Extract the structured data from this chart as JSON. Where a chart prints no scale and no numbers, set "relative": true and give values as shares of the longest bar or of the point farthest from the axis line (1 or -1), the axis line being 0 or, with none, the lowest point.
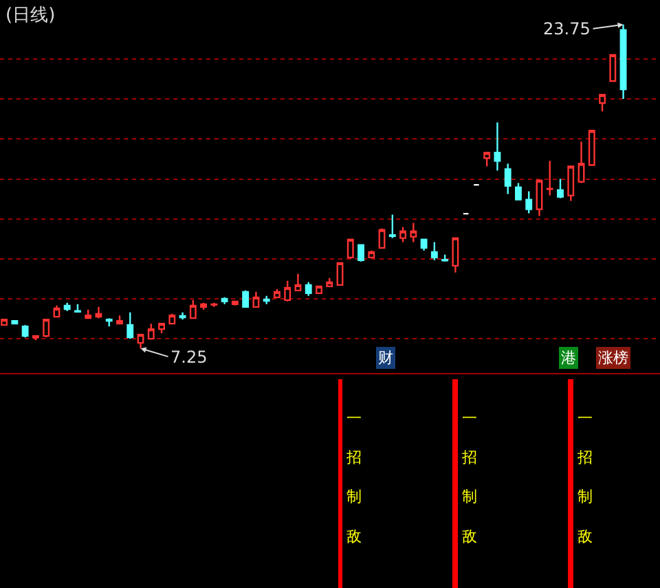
{
  "chart_data": [
    {
      "type": "candlestick",
      "title": "(日线)",
      "categories": [
        null,
        null,
        null,
        null,
        null,
        null,
        null,
        null,
        null,
        null,
        null,
        null,
        null,
        null,
        null,
        null,
        null,
        null,
        null,
        null,
        null,
        null,
        null,
        null,
        null,
        null,
        null,
        null,
        null,
        null,
        null,
        null,
        null,
        null,
        null,
        null,
        null,
        null,
        null,
        null,
        null,
        null,
        null,
        null,
        null,
        null,
        null,
        null,
        null,
        null,
        null,
        null,
        null,
        null,
        null,
        null,
        null,
        null,
        null,
        null
      ],
      "ohlc": [
        [
          8.44,
          8.72,
          8.44,
          8.72
        ],
        [
          8.65,
          8.65,
          8.51,
          8.51
        ],
        [
          8.37,
          8.44,
          7.81,
          7.88
        ],
        [
          7.8,
          7.92,
          7.67,
          7.88
        ],
        [
          7.88,
          8.72,
          7.81,
          8.72
        ],
        [
          8.86,
          9.43,
          8.86,
          9.29
        ],
        [
          9.43,
          9.57,
          9.15,
          9.25
        ],
        [
          9.16,
          9.5,
          9.12,
          9.12
        ],
        [
          8.79,
          9.22,
          8.79,
          8.93
        ],
        [
          8.86,
          9.36,
          8.79,
          9.01
        ],
        [
          8.72,
          8.79,
          8.37,
          8.65
        ],
        [
          8.51,
          8.93,
          8.51,
          8.65
        ],
        [
          8.44,
          9.08,
          7.74,
          7.81
        ],
        [
          7.53,
          7.95,
          7.25,
          7.95
        ],
        [
          7.74,
          8.51,
          7.74,
          8.23
        ],
        [
          8.23,
          8.51,
          8.02,
          8.51
        ],
        [
          8.51,
          9.01,
          8.51,
          8.93
        ],
        [
          8.9,
          9.08,
          8.72,
          8.83
        ],
        [
          8.79,
          9.71,
          8.79,
          9.43
        ],
        [
          9.36,
          9.57,
          9.22,
          9.5
        ],
        [
          9.47,
          9.57,
          9.36,
          9.5
        ],
        [
          9.78,
          9.85,
          9.5,
          9.64
        ],
        [
          9.5,
          9.64,
          9.43,
          9.64
        ],
        [
          10.13,
          10.2,
          9.36,
          9.36
        ],
        [
          9.36,
          10.13,
          9.36,
          9.85
        ],
        [
          9.74,
          9.92,
          9.5,
          9.67
        ],
        [
          9.85,
          10.27,
          9.85,
          10.13
        ],
        [
          9.71,
          10.69,
          9.64,
          10.34
        ],
        [
          10.2,
          11.04,
          10.2,
          10.48
        ],
        [
          10.48,
          10.62,
          9.92,
          10.06
        ],
        [
          10.06,
          10.41,
          10.06,
          10.41
        ],
        [
          10.41,
          10.83,
          10.41,
          10.62
        ],
        [
          10.48,
          11.6,
          10.48,
          11.6
        ],
        [
          11.88,
          12.8,
          11.81,
          12.8
        ],
        [
          12.52,
          12.52,
          11.67,
          11.74
        ],
        [
          11.88,
          12.23,
          11.88,
          12.16
        ],
        [
          12.37,
          13.36,
          12.37,
          13.29
        ],
        [
          13.02,
          14.06,
          12.87,
          12.97
        ],
        [
          12.87,
          13.43,
          12.66,
          13.22
        ],
        [
          12.94,
          13.64,
          12.66,
          13.22
        ],
        [
          12.8,
          12.8,
          12.23,
          12.37
        ],
        [
          12.16,
          12.66,
          11.74,
          11.88
        ],
        [
          11.76,
          12.02,
          11.67,
          11.72
        ],
        [
          11.46,
          12.87,
          11.11,
          12.87
        ],
        [
          14.11,
          14.11,
          14.11,
          14.11
        ],
        [
          15.58,
          15.58,
          15.58,
          15.58
        ],
        [
          16.94,
          17.22,
          16.52,
          17.22
        ],
        [
          17.22,
          18.76,
          16.31,
          16.8
        ],
        [
          16.38,
          16.66,
          15.11,
          15.53
        ],
        [
          15.46,
          15.67,
          14.83,
          14.83
        ],
        [
          14.83,
          15.25,
          14.13,
          14.34
        ],
        [
          14.34,
          15.81,
          13.99,
          15.81
        ],
        [
          15.36,
          16.8,
          15.04,
          15.39
        ],
        [
          15.32,
          15.88,
          14.9,
          14.97
        ],
        [
          15.04,
          16.52,
          14.76,
          16.52
        ],
        [
          15.74,
          17.78,
          15.67,
          16.66
        ],
        [
          16.59,
          18.34,
          16.59,
          18.34
        ],
        [
          19.75,
          20.17,
          19.32,
          20.17
        ],
        [
          20.87,
          22.2,
          20.87,
          22.2
        ],
        [
          23.47,
          23.75,
          19.96,
          20.45
        ]
      ],
      "colors": [
        "#ff3232",
        "#54ffff",
        "#54ffff",
        "#ff3232",
        "#ff3232",
        "#ff3232",
        "#54ffff",
        "#54ffff",
        "#ff3232",
        "#ff3232",
        "#54ffff",
        "#ff3232",
        "#54ffff",
        "#ff3232",
        "#ff3232",
        "#ff3232",
        "#ff3232",
        "#54ffff",
        "#ff3232",
        "#ff3232",
        "#ff3232",
        "#54ffff",
        "#ff3232",
        "#54ffff",
        "#ff3232",
        "#54ffff",
        "#ff3232",
        "#ff3232",
        "#ff3232",
        "#54ffff",
        "#ff3232",
        "#ff3232",
        "#ff3232",
        "#ff3232",
        "#54ffff",
        "#ff3232",
        "#ff3232",
        "#54ffff",
        "#ff3232",
        "#ff3232",
        "#54ffff",
        "#54ffff",
        "#54ffff",
        "#ff3232",
        "#ffffff",
        "#ffffff",
        "#ff3232",
        "#54ffff",
        "#54ffff",
        "#54ffff",
        "#54ffff",
        "#ff3232",
        "#ff3232",
        "#54ffff",
        "#ff3232",
        "#ff3232",
        "#ff3232",
        "#ff3232",
        "#ff3232",
        "#54ffff"
      ],
      "ylim": [
        6.1,
        25.0
      ],
      "yticks": [
        {
          "value": 7.74,
          "label": null
        },
        {
          "value": 9.78,
          "label": null
        },
        {
          "value": 11.81,
          "label": null
        },
        {
          "value": 13.85,
          "label": null
        },
        {
          "value": 15.88,
          "label": null
        },
        {
          "value": 17.92,
          "label": null
        },
        {
          "value": 19.96,
          "label": null
        },
        {
          "value": 21.99,
          "label": null
        }
      ],
      "grid": "y",
      "tick_labels": false,
      "annotations": [
        "7.25",
        "23.75",
        "财",
        "港",
        "涨榜"
      ]
    },
    {
      "type": "bar",
      "relative": true,
      "tick_labels": false,
      "categories": [
        null,
        null,
        null,
        null,
        null,
        null,
        null,
        null,
        null,
        null,
        null,
        null,
        null,
        null,
        null,
        null,
        null,
        null,
        null,
        null,
        null,
        null,
        null,
        null,
        null,
        null,
        null,
        null,
        null,
        null,
        null,
        null,
        null,
        null,
        null,
        null,
        null,
        null,
        null,
        null,
        null,
        null,
        null,
        null,
        null,
        null,
        null,
        null,
        null,
        null,
        null,
        null,
        null,
        null,
        null,
        null,
        null,
        null,
        null,
        null
      ],
      "values": [
        null,
        null,
        null,
        null,
        null,
        null,
        null,
        null,
        null,
        null,
        null,
        null,
        null,
        null,
        null,
        null,
        null,
        null,
        null,
        null,
        null,
        null,
        null,
        null,
        null,
        null,
        null,
        null,
        null,
        null,
        null,
        null,
        1,
        null,
        null,
        null,
        null,
        null,
        null,
        null,
        null,
        null,
        null,
        1,
        null,
        null,
        null,
        null,
        null,
        null,
        null,
        null,
        null,
        null,
        1,
        null,
        null,
        null,
        null,
        null
      ],
      "annotations": [
        "一招制敌",
        "一招制敌",
        "一招制敌"
      ],
      "color": "#ff0000"
    }
  ]
}
